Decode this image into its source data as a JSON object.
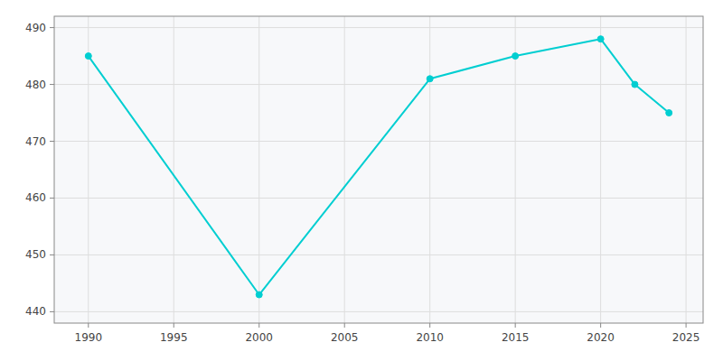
{
  "chart_data": {
    "type": "line",
    "x": [
      1990,
      2000,
      2010,
      2015,
      2020,
      2022,
      2024
    ],
    "values": [
      485,
      443,
      481,
      485,
      488,
      480,
      475
    ],
    "color": "#00CED1",
    "marker": "circle",
    "xlim": [
      1988,
      2026
    ],
    "ylim": [
      438,
      492
    ],
    "xticks": [
      1990,
      1995,
      2000,
      2005,
      2010,
      2015,
      2020,
      2025
    ],
    "yticks": [
      440,
      450,
      460,
      470,
      480,
      490
    ],
    "grid": true
  }
}
